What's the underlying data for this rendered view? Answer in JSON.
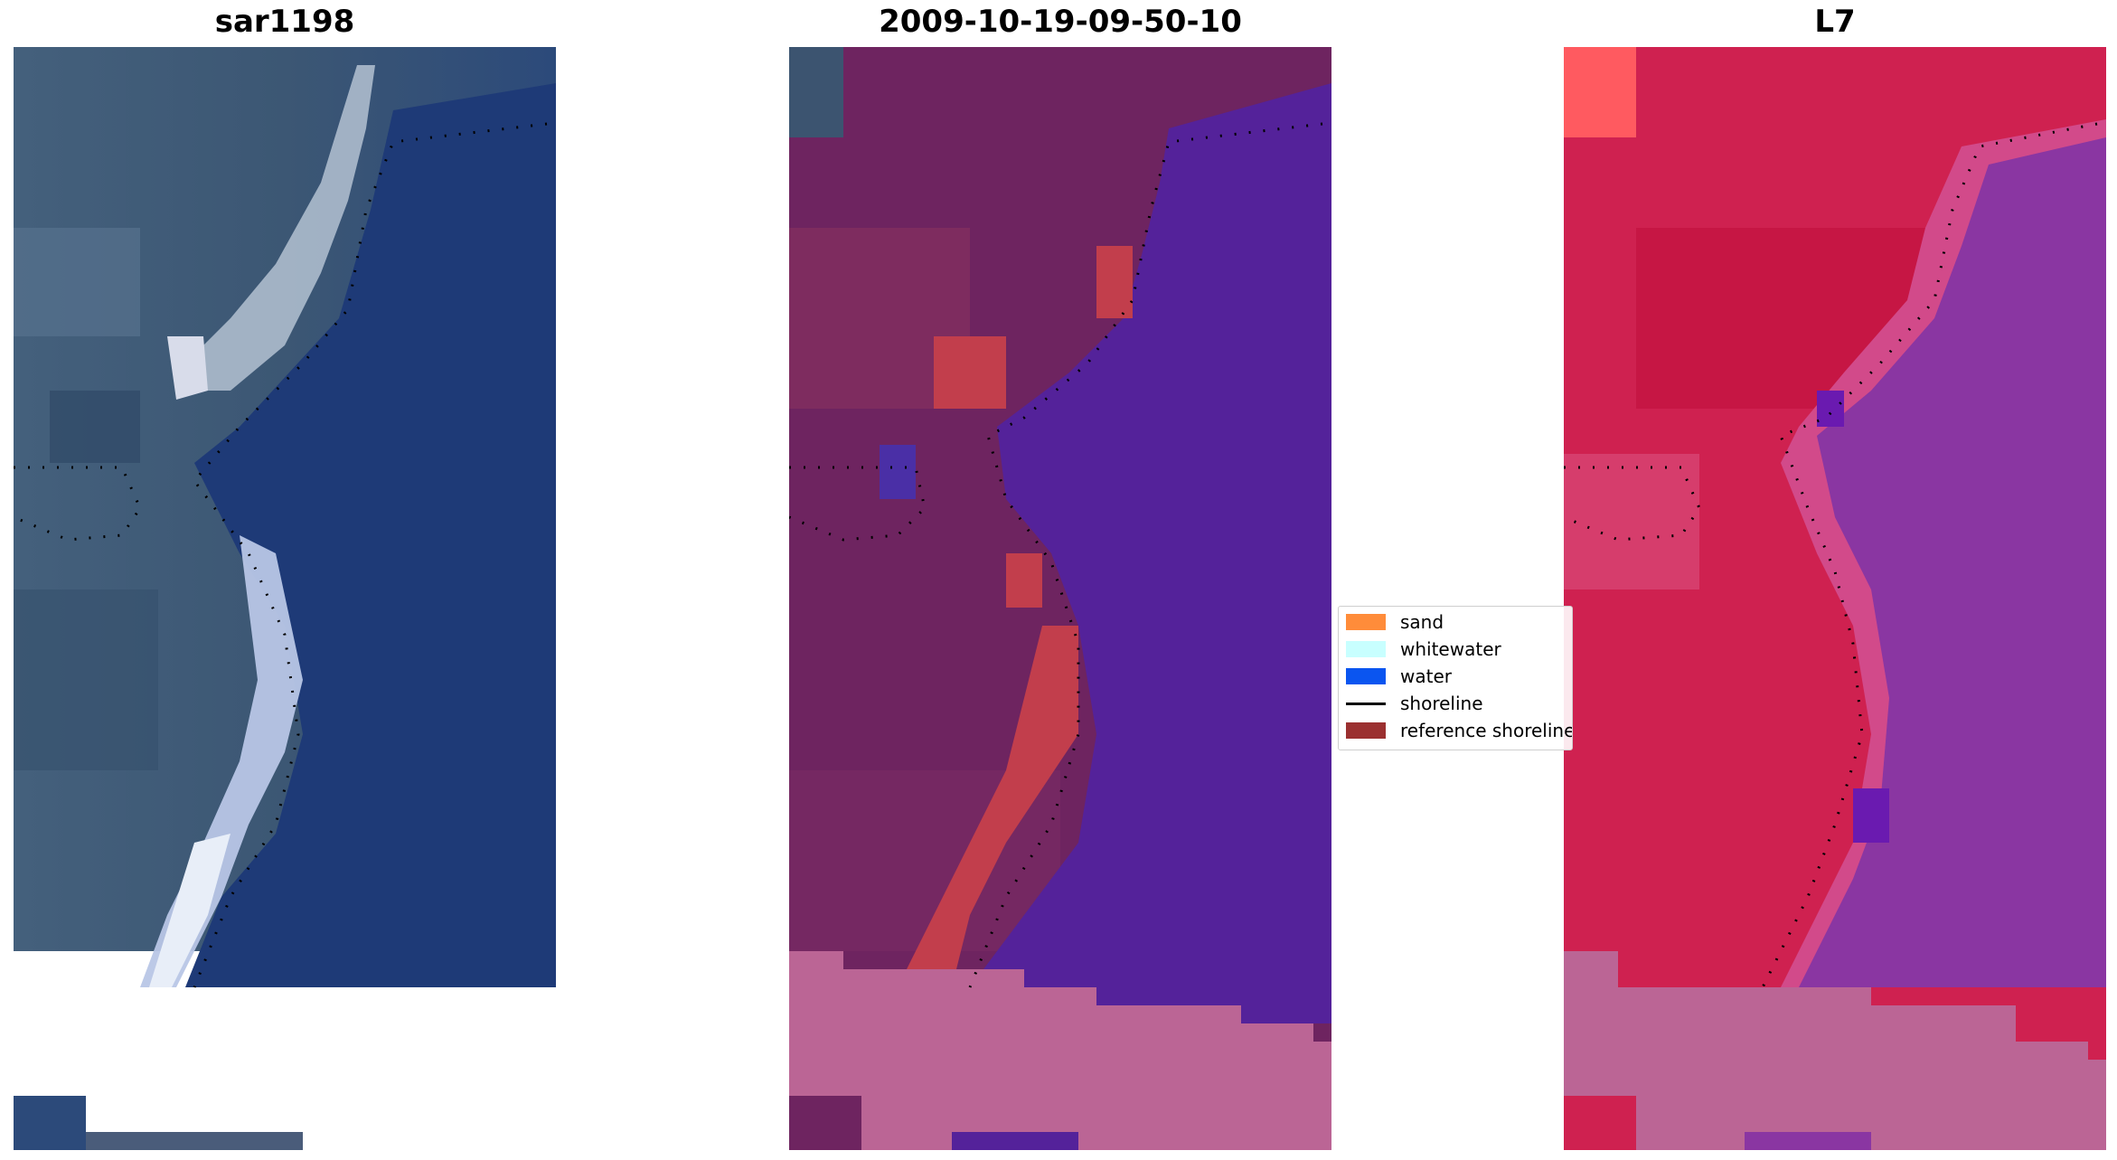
{
  "panels": [
    {
      "title": "sar1198"
    },
    {
      "title": "2009-10-19-09-50-10"
    },
    {
      "title": "L7"
    }
  ],
  "legend": {
    "items": [
      {
        "label": "sand",
        "color": "#ff8c3a"
      },
      {
        "label": "whitewater",
        "color": "#c8ffff"
      },
      {
        "label": "water",
        "color": "#0a55f0"
      },
      {
        "label": "shoreline",
        "color": "#000000"
      },
      {
        "label": "reference shoreline",
        "color": "#9b3030"
      }
    ]
  },
  "colors": {
    "rgb_land": "#3f5670",
    "rgb_water": "#1f3a74",
    "rgb_foam": "#c8d4ea",
    "class_land": "#6e2460",
    "class_water": "#54229a",
    "class_ref": "#c23e4c",
    "class_nodata": "#bb6595",
    "l7_land": "#cf2150",
    "l7_water": "#8a36a2",
    "l7_nodata": "#bb6595"
  }
}
